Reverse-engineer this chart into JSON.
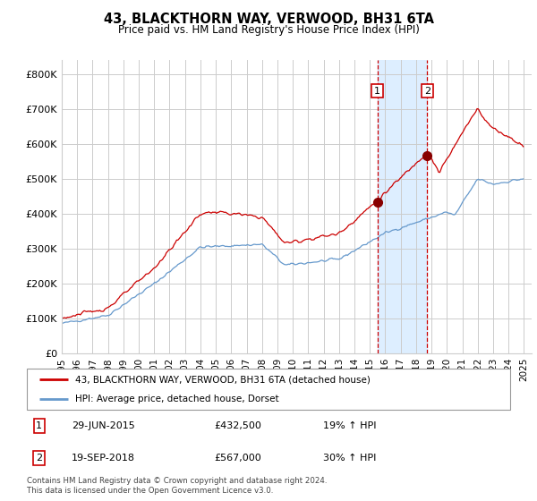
{
  "title": "43, BLACKTHORN WAY, VERWOOD, BH31 6TA",
  "subtitle": "Price paid vs. HM Land Registry's House Price Index (HPI)",
  "ylabel_ticks": [
    "£0",
    "£100K",
    "£200K",
    "£300K",
    "£400K",
    "£500K",
    "£600K",
    "£700K",
    "£800K"
  ],
  "ytick_values": [
    0,
    100000,
    200000,
    300000,
    400000,
    500000,
    600000,
    700000,
    800000
  ],
  "ylim": [
    0,
    840000
  ],
  "xlim_start": 1995.0,
  "xlim_end": 2025.5,
  "transaction1": {
    "date_num": 2015.49,
    "price": 432500,
    "label": "1"
  },
  "transaction2": {
    "date_num": 2018.72,
    "price": 567000,
    "label": "2"
  },
  "legend_line1": "43, BLACKTHORN WAY, VERWOOD, BH31 6TA (detached house)",
  "legend_line2": "HPI: Average price, detached house, Dorset",
  "annotation1_date": "29-JUN-2015",
  "annotation1_price": "£432,500",
  "annotation1_hpi": "19% ↑ HPI",
  "annotation2_date": "19-SEP-2018",
  "annotation2_price": "£567,000",
  "annotation2_hpi": "30% ↑ HPI",
  "footer": "Contains HM Land Registry data © Crown copyright and database right 2024.\nThis data is licensed under the Open Government Licence v3.0.",
  "red_color": "#cc0000",
  "blue_color": "#6699cc",
  "shading_color": "#ddeeff",
  "grid_color": "#cccccc",
  "bg_color": "#ffffff"
}
